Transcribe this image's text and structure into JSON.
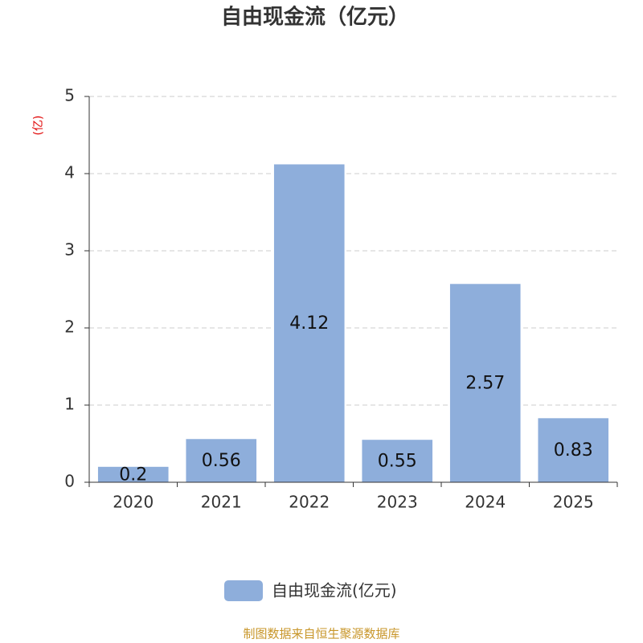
{
  "chart_data": {
    "type": "bar",
    "title": "自由现金流（亿元）",
    "y_axis_label": "(亿)",
    "categories": [
      "2020",
      "2021",
      "2022",
      "2023",
      "2024",
      "2025"
    ],
    "series": [
      {
        "name": "自由现金流(亿元)",
        "color": "#8eaedb",
        "values": [
          0.2,
          0.56,
          4.12,
          0.55,
          2.57,
          0.83
        ]
      }
    ],
    "ylim": [
      0,
      5
    ],
    "yticks": [
      0,
      1,
      2,
      3,
      4,
      5
    ],
    "grid": true,
    "source": "制图数据来自恒生聚源数据库"
  }
}
